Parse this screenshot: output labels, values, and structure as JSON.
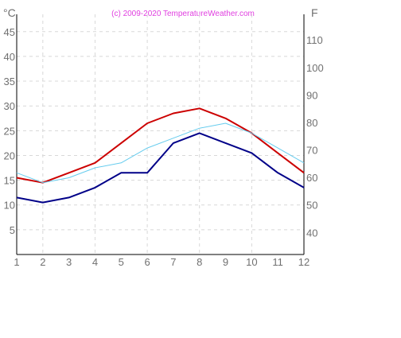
{
  "chart_data": {
    "type": "line",
    "copyright": "(c) 2009-2020  TemperatureWeather.com",
    "left_unit": "°C",
    "right_unit": "F",
    "x": [
      1,
      2,
      3,
      4,
      5,
      6,
      7,
      8,
      9,
      10,
      11,
      12
    ],
    "xlim": [
      1,
      12
    ],
    "ylim": [
      0,
      50
    ],
    "left_ticks": [
      5,
      10,
      15,
      20,
      25,
      30,
      35,
      40,
      45
    ],
    "right_ticks": [
      40,
      50,
      60,
      70,
      80,
      90,
      100,
      110
    ],
    "grid": true,
    "series": [
      {
        "key": "high",
        "color": "#cc0000",
        "width": 2,
        "values": [
          15.5,
          14.5,
          16.5,
          18.5,
          22.5,
          26.5,
          28.5,
          29.5,
          27.5,
          24.5,
          20.5,
          16.5
        ]
      },
      {
        "key": "low",
        "color": "#000088",
        "width": 2,
        "values": [
          11.5,
          10.5,
          11.5,
          13.5,
          16.5,
          16.5,
          22.5,
          24.5,
          22.5,
          20.5,
          16.5,
          13.5
        ]
      },
      {
        "key": "sea",
        "color": "#66ccee",
        "width": 1,
        "values": [
          16.5,
          14.5,
          15.5,
          17.5,
          18.5,
          21.5,
          23.5,
          25.5,
          26.5,
          24.5,
          21.5,
          18.5
        ]
      }
    ]
  }
}
